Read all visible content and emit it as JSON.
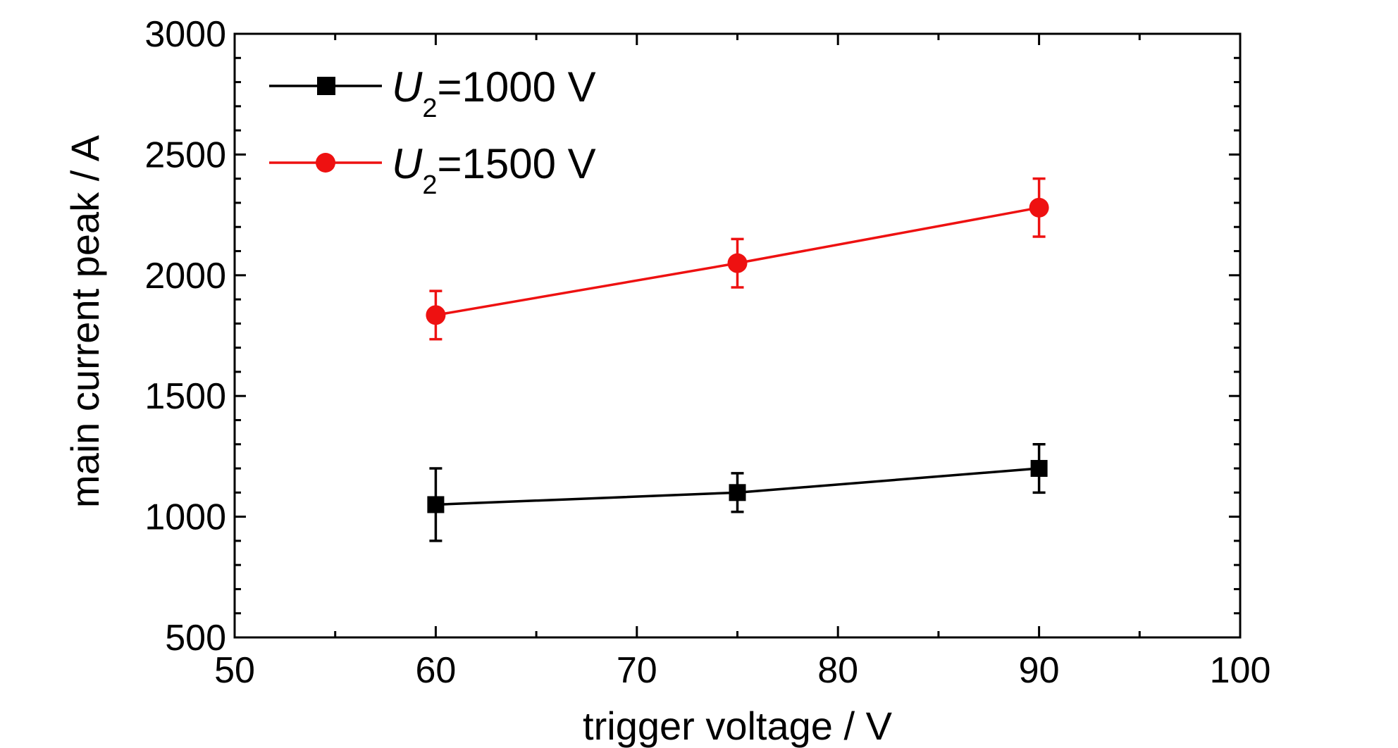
{
  "chart_data": {
    "type": "line",
    "title": "",
    "xlabel": "trigger voltage / V",
    "ylabel": "main current peak / A",
    "xlim": [
      50,
      100
    ],
    "ylim": [
      500,
      3000
    ],
    "x_ticks": [
      "50",
      "60",
      "70",
      "80",
      "90",
      "100"
    ],
    "y_ticks": [
      "500",
      "1000",
      "1500",
      "2000",
      "2500",
      "3000"
    ],
    "x_minor_step": 5,
    "y_minor_step": 100,
    "grid": false,
    "legend_position": "top-left",
    "x": [
      60,
      75,
      90
    ],
    "series": [
      {
        "name": "U2=1000 V",
        "legend_symbol": "U",
        "legend_subscript": "2",
        "legend_rest": "=1000 V",
        "color": "#000000",
        "marker": "square",
        "values": [
          1050,
          1100,
          1200
        ],
        "errors": [
          150,
          80,
          100
        ]
      },
      {
        "name": "U2=1500 V",
        "legend_symbol": "U",
        "legend_subscript": "2",
        "legend_rest": "=1500 V",
        "color": "#ee1111",
        "marker": "circle",
        "values": [
          1835,
          2050,
          2280
        ],
        "errors": [
          100,
          100,
          120
        ]
      }
    ]
  }
}
